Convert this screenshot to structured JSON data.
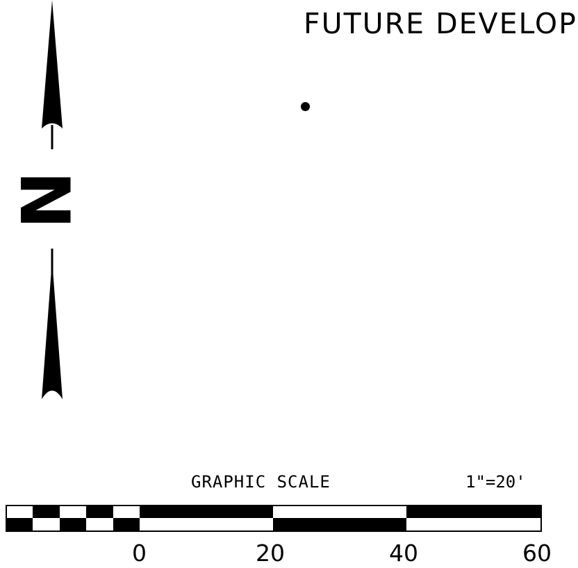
{
  "map": {
    "annotation": "FUTURE DEVELOPM",
    "north_arrow_letter": "N"
  },
  "graphic_scale": {
    "title": "GRAPHIC SCALE",
    "ratio": "1\"=20'",
    "ticks": [
      "0",
      "20",
      "40",
      "60"
    ]
  },
  "colors": {
    "ink": "#000000",
    "paper": "#ffffff"
  },
  "icons": {
    "north_arrow": "north-arrow-icon",
    "point_marker": "dot-marker-icon"
  }
}
